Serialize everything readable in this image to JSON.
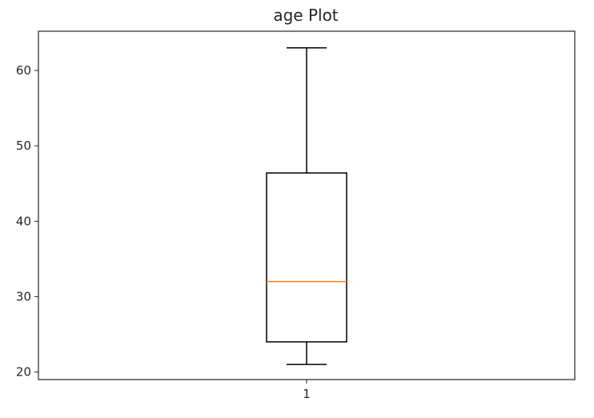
{
  "chart_data": {
    "type": "box",
    "title": "age Plot",
    "xlabel": "",
    "ylabel": "",
    "categories": [
      "1"
    ],
    "boxes": [
      {
        "whisker_low": 21,
        "q1": 24,
        "median": 32,
        "q3": 46.4,
        "whisker_high": 63
      }
    ],
    "ylim": [
      19,
      65.2
    ],
    "yticks": [
      20,
      30,
      40,
      50,
      60
    ],
    "grid": false,
    "colors": {
      "box": "#000000",
      "median": "#ff7f0e",
      "axes": "#262626"
    }
  }
}
